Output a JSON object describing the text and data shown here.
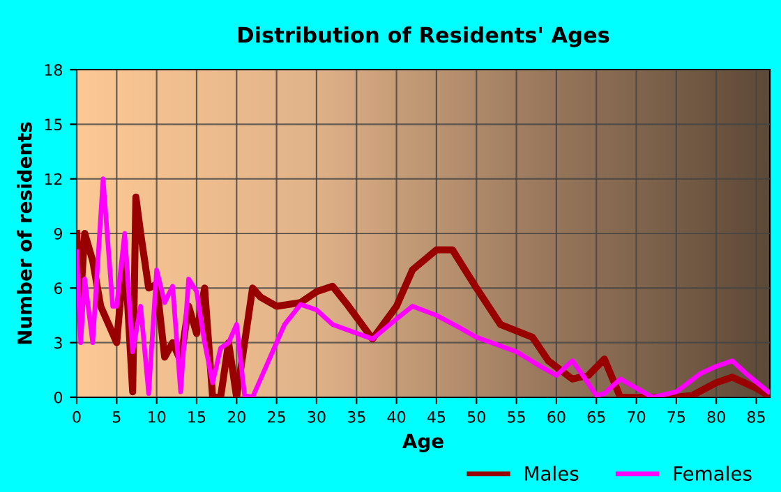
{
  "chart_data": {
    "type": "line",
    "title": "Distribution of Residents' Ages",
    "xlabel": "Age",
    "ylabel": "Number of residents",
    "xlim": [
      0,
      86.7
    ],
    "xticks": [
      0,
      5,
      10,
      15,
      20,
      25,
      30,
      35,
      40,
      45,
      50,
      55,
      60,
      65,
      70,
      75,
      80,
      85
    ],
    "ylim": [
      0,
      18
    ],
    "yticks": [
      0,
      3,
      6,
      9,
      12,
      15,
      18
    ],
    "grid": true,
    "legend": "bottom right",
    "series": [
      {
        "name": "Males",
        "color": "#990000",
        "x": [
          0,
          0.5,
          1,
          2,
          3,
          4,
          5,
          6,
          7,
          7.4,
          8,
          9,
          10,
          11,
          12,
          13,
          14,
          15,
          16,
          17,
          18,
          19,
          20,
          22,
          23,
          25,
          28,
          30,
          32,
          34,
          37,
          40,
          42,
          45,
          47,
          50,
          53,
          57,
          59,
          62,
          64,
          66,
          68,
          75,
          77,
          80,
          82,
          85,
          86.5
        ],
        "values": [
          9,
          5.5,
          9,
          7.5,
          5,
          4,
          3,
          8,
          0.3,
          11,
          9,
          6,
          6.2,
          2.2,
          3,
          2,
          5,
          3.5,
          6,
          0,
          0,
          3,
          0,
          6,
          5.5,
          5,
          5.2,
          5.8,
          6.1,
          5,
          3.2,
          5,
          7,
          8.1,
          8.1,
          6,
          4,
          3.3,
          2,
          1,
          1.2,
          2.1,
          0,
          0,
          0.1,
          0.8,
          1.1,
          0.5,
          0.1
        ]
      },
      {
        "name": "Females",
        "color": "#ff00ff",
        "x": [
          0,
          0.5,
          1,
          2,
          3.3,
          4.5,
          5,
          6,
          7,
          8,
          9,
          10,
          11,
          12,
          13,
          14,
          15,
          16,
          17,
          18,
          19,
          20,
          21,
          22,
          24,
          26,
          28,
          30,
          32,
          37,
          40,
          42,
          45,
          48,
          50,
          55,
          58,
          60,
          62,
          63,
          65,
          66,
          68,
          70,
          72,
          75,
          78,
          80,
          82,
          84,
          86.5
        ],
        "values": [
          8,
          3,
          6.5,
          3,
          12,
          5,
          5,
          9,
          2.5,
          5,
          0.2,
          7,
          5.2,
          6.1,
          0.3,
          6.5,
          5.8,
          3,
          0.8,
          2.7,
          3,
          4,
          0.1,
          0,
          2,
          4,
          5.1,
          4.8,
          4,
          3.2,
          4.3,
          5,
          4.5,
          3.8,
          3.3,
          2.5,
          1.7,
          1.2,
          2,
          1.4,
          0.1,
          0.2,
          1,
          0.5,
          0,
          0.3,
          1.3,
          1.7,
          2,
          1.2,
          0.3
        ]
      }
    ]
  }
}
